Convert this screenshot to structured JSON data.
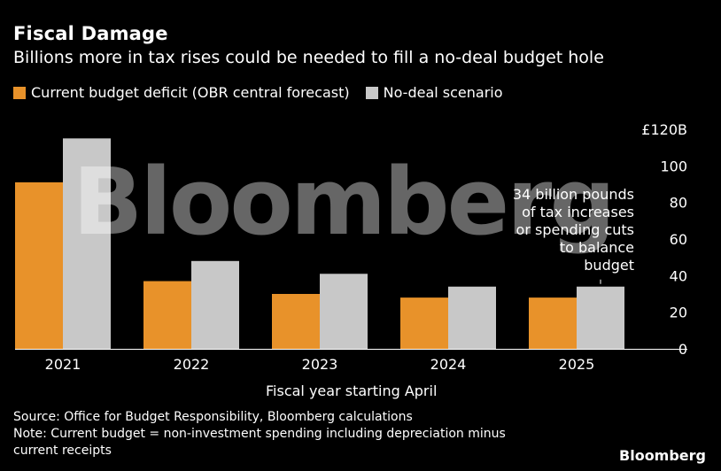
{
  "header": {
    "title": "Fiscal Damage",
    "subtitle": "Billions more in tax rises could be needed to fill a no-deal budget hole"
  },
  "colors": {
    "current": "#E8922A",
    "nodeal": "#C8C8C8",
    "background": "#000000"
  },
  "chart_data": {
    "type": "bar",
    "categories": [
      "2021",
      "2022",
      "2023",
      "2024",
      "2025"
    ],
    "series": [
      {
        "name": "Current budget deficit (OBR central forecast)",
        "values": [
          91,
          37,
          30,
          28,
          28
        ]
      },
      {
        "name": "No-deal scenario",
        "values": [
          115,
          48,
          41,
          34,
          34
        ]
      }
    ],
    "xlabel": "Fiscal year starting April",
    "ylabel": "",
    "ylim": [
      0,
      120
    ],
    "yticks": [
      "0",
      "20",
      "40",
      "60",
      "80",
      "100",
      "£120B"
    ],
    "grid": false,
    "legend_position": "top-left",
    "annotation": [
      "34 billion pounds",
      "of tax increases",
      "or spending cuts",
      "to balance",
      "budget"
    ]
  },
  "watermark": "Bloomberg",
  "footer": {
    "source": "Source: Office for Budget Responsibility, Bloomberg calculations",
    "note_line1": "Note: Current budget = non-investment spending including depreciation minus",
    "note_line2": "current receipts",
    "brand": "Bloomberg"
  }
}
